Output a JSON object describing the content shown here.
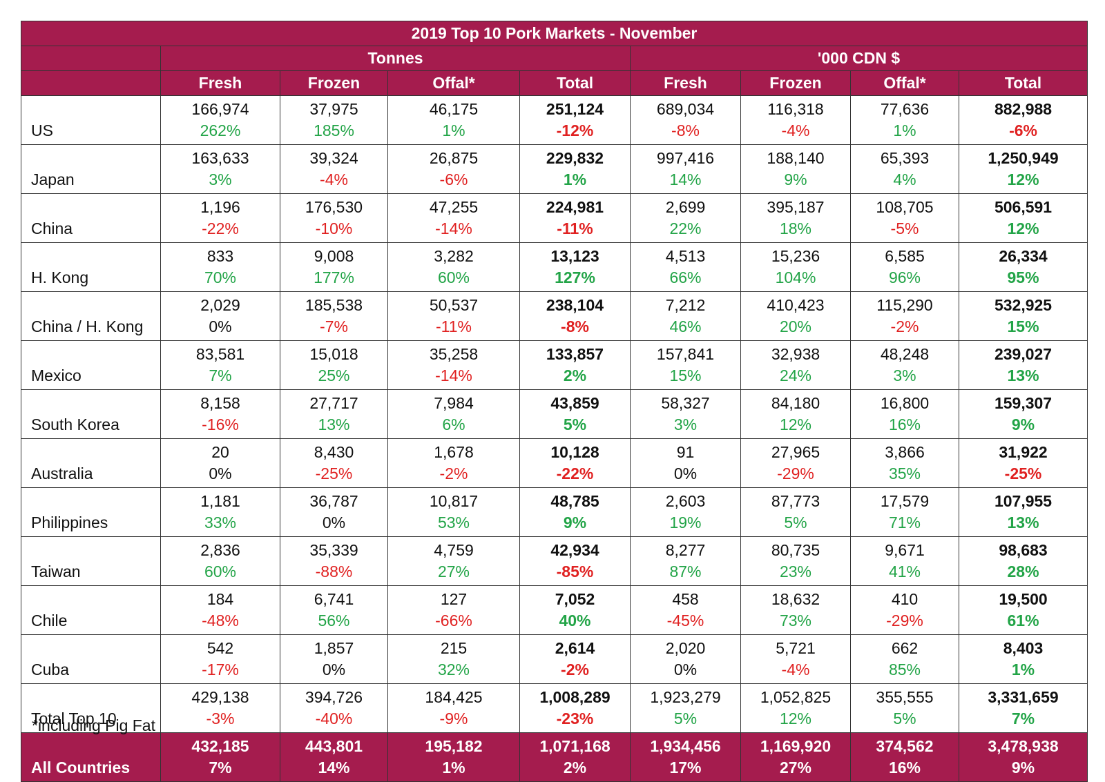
{
  "chart_data": {
    "type": "table",
    "title": "2019 Top 10 Pork Markets - November",
    "group_headers": [
      "Tonnes",
      "'000 CDN $"
    ],
    "columns": [
      "Fresh",
      "Frozen",
      "Offal*",
      "Total",
      "Fresh",
      "Frozen",
      "Offal*",
      "Total"
    ],
    "rows": [
      {
        "country": "US",
        "values": [
          "166,974",
          "37,975",
          "46,175",
          "251,124",
          "689,034",
          "116,318",
          "77,636",
          "882,988"
        ],
        "changes": [
          "262%",
          "185%",
          "1%",
          "-12%",
          "-8%",
          "-4%",
          "1%",
          "-6%"
        ]
      },
      {
        "country": "Japan",
        "values": [
          "163,633",
          "39,324",
          "26,875",
          "229,832",
          "997,416",
          "188,140",
          "65,393",
          "1,250,949"
        ],
        "changes": [
          "3%",
          "-4%",
          "-6%",
          "1%",
          "14%",
          "9%",
          "4%",
          "12%"
        ]
      },
      {
        "country": "China",
        "values": [
          "1,196",
          "176,530",
          "47,255",
          "224,981",
          "2,699",
          "395,187",
          "108,705",
          "506,591"
        ],
        "changes": [
          "-22%",
          "-10%",
          "-14%",
          "-11%",
          "22%",
          "18%",
          "-5%",
          "12%"
        ]
      },
      {
        "country": "H. Kong",
        "values": [
          "833",
          "9,008",
          "3,282",
          "13,123",
          "4,513",
          "15,236",
          "6,585",
          "26,334"
        ],
        "changes": [
          "70%",
          "177%",
          "60%",
          "127%",
          "66%",
          "104%",
          "96%",
          "95%"
        ]
      },
      {
        "country": "China / H. Kong",
        "values": [
          "2,029",
          "185,538",
          "50,537",
          "238,104",
          "7,212",
          "410,423",
          "115,290",
          "532,925"
        ],
        "changes": [
          "0%",
          "-7%",
          "-11%",
          "-8%",
          "46%",
          "20%",
          "-2%",
          "15%"
        ]
      },
      {
        "country": "Mexico",
        "values": [
          "83,581",
          "15,018",
          "35,258",
          "133,857",
          "157,841",
          "32,938",
          "48,248",
          "239,027"
        ],
        "changes": [
          "7%",
          "25%",
          "-14%",
          "2%",
          "15%",
          "24%",
          "3%",
          "13%"
        ]
      },
      {
        "country": "South Korea",
        "values": [
          "8,158",
          "27,717",
          "7,984",
          "43,859",
          "58,327",
          "84,180",
          "16,800",
          "159,307"
        ],
        "changes": [
          "-16%",
          "13%",
          "6%",
          "5%",
          "3%",
          "12%",
          "16%",
          "9%"
        ]
      },
      {
        "country": "Australia",
        "values": [
          "20",
          "8,430",
          "1,678",
          "10,128",
          "91",
          "27,965",
          "3,866",
          "31,922"
        ],
        "changes": [
          "0%",
          "-25%",
          "-2%",
          "-22%",
          "0%",
          "-29%",
          "35%",
          "-25%"
        ]
      },
      {
        "country": "Philippines",
        "values": [
          "1,181",
          "36,787",
          "10,817",
          "48,785",
          "2,603",
          "87,773",
          "17,579",
          "107,955"
        ],
        "changes": [
          "33%",
          "0%",
          "53%",
          "9%",
          "19%",
          "5%",
          "71%",
          "13%"
        ]
      },
      {
        "country": "Taiwan",
        "values": [
          "2,836",
          "35,339",
          "4,759",
          "42,934",
          "8,277",
          "80,735",
          "9,671",
          "98,683"
        ],
        "changes": [
          "60%",
          "-88%",
          "27%",
          "-85%",
          "87%",
          "23%",
          "41%",
          "28%"
        ]
      },
      {
        "country": "Chile",
        "values": [
          "184",
          "6,741",
          "127",
          "7,052",
          "458",
          "18,632",
          "410",
          "19,500"
        ],
        "changes": [
          "-48%",
          "56%",
          "-66%",
          "40%",
          "-45%",
          "73%",
          "-29%",
          "61%"
        ]
      },
      {
        "country": "Cuba",
        "values": [
          "542",
          "1,857",
          "215",
          "2,614",
          "2,020",
          "5,721",
          "662",
          "8,403"
        ],
        "changes": [
          "-17%",
          "0%",
          "32%",
          "-2%",
          "0%",
          "-4%",
          "85%",
          "1%"
        ]
      },
      {
        "country": "Total Top 10",
        "values": [
          "429,138",
          "394,726",
          "184,425",
          "1,008,289",
          "1,923,279",
          "1,052,825",
          "355,555",
          "3,331,659"
        ],
        "changes": [
          "-3%",
          "-40%",
          "-9%",
          "-23%",
          "5%",
          "12%",
          "5%",
          "7%"
        ]
      }
    ],
    "all_countries": {
      "country": "All Countries",
      "values": [
        "432,185",
        "443,801",
        "195,182",
        "1,071,168",
        "1,934,456",
        "1,169,920",
        "374,562",
        "3,478,938"
      ],
      "changes": [
        "7%",
        "14%",
        "1%",
        "2%",
        "17%",
        "27%",
        "16%",
        "9%"
      ]
    },
    "footnote": "*including Pig Fat",
    "colors": {
      "header_bg": "#a51c4e",
      "positive": "#22a447",
      "negative": "#e02121"
    }
  }
}
